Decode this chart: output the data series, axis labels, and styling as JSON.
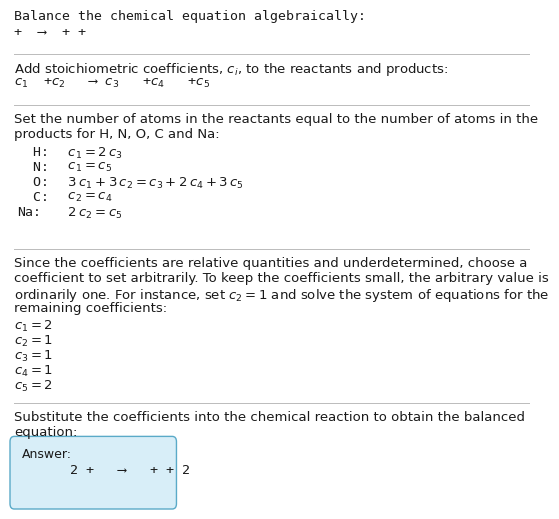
{
  "title": "Balance the chemical equation algebraically:",
  "line1": "+  ⟶  + +",
  "section2_title": "Add stoichiometric coefficients, $c_i$, to the reactants and products:",
  "line2_parts": [
    "$c_1$  +$c_2$   ⟶ $c_3$   +$c_4$   +$c_5$"
  ],
  "section3_title_l1": "Set the number of atoms in the reactants equal to the number of atoms in the",
  "section3_title_l2": "products for H, N, O, C and Na:",
  "equations": [
    [
      "  H:",
      "  $c_1 = 2\\,c_3$"
    ],
    [
      "  N:",
      "  $c_1 = c_5$"
    ],
    [
      "  O:",
      "  $3\\,c_1 + 3\\,c_2 = c_3 + 2\\,c_4 + 3\\,c_5$"
    ],
    [
      "  C:",
      "  $c_2 = c_4$"
    ],
    [
      "Na:",
      "  $2\\,c_2 = c_5$"
    ]
  ],
  "section4_l1": "Since the coefficients are relative quantities and underdetermined, choose a",
  "section4_l2": "coefficient to set arbitrarily. To keep the coefficients small, the arbitrary value is",
  "section4_l3": "ordinarily one. For instance, set $c_2 = 1$ and solve the system of equations for the",
  "section4_l4": "remaining coefficients:",
  "coefficients": [
    "$c_1 = 2$",
    "$c_2 = 1$",
    "$c_3 = 1$",
    "$c_4 = 1$",
    "$c_5 = 2$"
  ],
  "section5_l1": "Substitute the coefficients into the chemical reaction to obtain the balanced",
  "section5_l2": "equation:",
  "answer_label": "Answer:",
  "answer_eq": "      2 +   ⟶   + + 2",
  "bg_color": "#ffffff",
  "text_color": "#1a1a1a",
  "answer_box_facecolor": "#d8eef8",
  "answer_box_edgecolor": "#5aaac8",
  "divider_color": "#bbbbbb",
  "fontsize": 9.5,
  "mono_fontsize": 9.5
}
